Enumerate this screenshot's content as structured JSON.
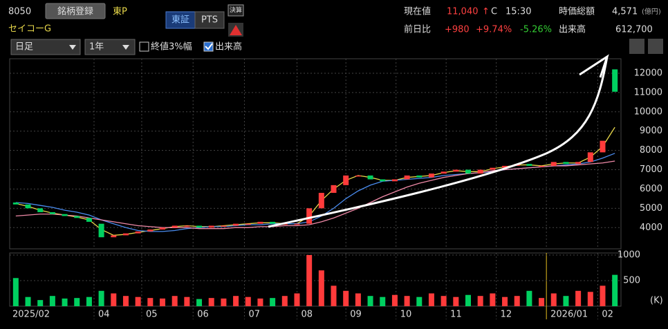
{
  "header": {
    "code": "8050",
    "register": "銘柄登録",
    "market": "東P",
    "name": "セイコーG",
    "exchange": "東証",
    "pts": "PTS",
    "settle": "決算",
    "price_label": "現在値",
    "price": "11,040",
    "arrow": "↑",
    "flag": "C",
    "time": "15:30",
    "cap_label": "時価総額",
    "cap": "4,571",
    "cap_unit": "(億円)",
    "change_label": "前日比",
    "change": "+980",
    "change_pct": "+9.74%",
    "intraday_pct": "-5.26%",
    "volume_label": "出来高",
    "volume": "612,700",
    "period": "日足",
    "range": "1年",
    "close3": "終値3%幅",
    "show_volume": "出来高"
  },
  "chart_data": [
    {
      "type": "candlestick",
      "up_color": "#ff3b3b",
      "down_color": "#00d060",
      "open": [
        5300,
        5200,
        5000,
        4800,
        4700,
        4600,
        4500,
        4200,
        3500,
        3600,
        3700,
        3800,
        3900,
        4000,
        4100,
        4100,
        4000,
        4100,
        4100,
        4200,
        4200,
        4300,
        4200,
        4200,
        4200,
        5000,
        5800,
        6200,
        6700,
        6700,
        6500,
        6400,
        6500,
        6700,
        6600,
        6800,
        6900,
        7000,
        6800,
        7000,
        7100,
        7200,
        7300,
        7200,
        7200,
        7400,
        7300,
        7400,
        7900,
        12200
      ],
      "close": [
        5200,
        5000,
        4800,
        4700,
        4600,
        4500,
        4300,
        3500,
        3600,
        3700,
        3800,
        3900,
        4000,
        4100,
        4100,
        4000,
        4100,
        4100,
        4200,
        4200,
        4300,
        4200,
        4200,
        4200,
        5000,
        5800,
        6200,
        6700,
        6700,
        6500,
        6400,
        6500,
        6700,
        6600,
        6800,
        6900,
        7000,
        6800,
        7000,
        7100,
        7200,
        7300,
        7200,
        7200,
        7400,
        7300,
        7400,
        7900,
        8500,
        11040
      ],
      "series": [
        {
          "color": "#e8d84a",
          "values": [
            5250,
            5100,
            4900,
            4750,
            4650,
            4550,
            4400,
            3900,
            3600,
            3650,
            3750,
            3850,
            3950,
            4050,
            4100,
            4050,
            4050,
            4100,
            4150,
            4200,
            4250,
            4250,
            4200,
            4200,
            4600,
            5400,
            6000,
            6450,
            6700,
            6600,
            6450,
            6450,
            6600,
            6650,
            6700,
            6850,
            6950,
            6900,
            6900,
            7050,
            7150,
            7250,
            7250,
            7200,
            7300,
            7350,
            7350,
            7650,
            8200,
            9200
          ]
        },
        {
          "color": "#4a8cf0",
          "values": [
            5300,
            5250,
            5150,
            5050,
            4900,
            4800,
            4650,
            4400,
            4200,
            4000,
            3850,
            3800,
            3800,
            3850,
            3950,
            4000,
            4050,
            4050,
            4100,
            4150,
            4150,
            4200,
            4200,
            4200,
            4300,
            4600,
            5000,
            5500,
            5900,
            6200,
            6400,
            6450,
            6500,
            6550,
            6600,
            6700,
            6750,
            6800,
            6850,
            6900,
            7000,
            7050,
            7100,
            7150,
            7200,
            7250,
            7300,
            7400,
            7600,
            7850
          ]
        },
        {
          "color": "#f08aa8",
          "values": [
            4600,
            4650,
            4700,
            4700,
            4650,
            4600,
            4500,
            4400,
            4300,
            4200,
            4100,
            4050,
            4000,
            4000,
            4000,
            3950,
            3950,
            3950,
            4000,
            4000,
            4050,
            4050,
            4100,
            4100,
            4150,
            4300,
            4500,
            4750,
            5000,
            5300,
            5600,
            5850,
            6100,
            6300,
            6450,
            6600,
            6700,
            6800,
            6850,
            6950,
            7000,
            7050,
            7100,
            7150,
            7200,
            7200,
            7250,
            7300,
            7350,
            7450
          ]
        }
      ],
      "ylim": [
        2900,
        12750
      ],
      "yticks": [
        4000,
        5000,
        6000,
        7000,
        8000,
        9000,
        10000,
        11000,
        12000
      ],
      "xlim": [
        -0.5,
        49.5
      ],
      "xticks": [
        {
          "value": 0,
          "label": "2025/02"
        },
        {
          "value": 6.4,
          "label": "04"
        },
        {
          "value": 10.3,
          "label": "05"
        },
        {
          "value": 14.5,
          "label": "06"
        },
        {
          "value": 18.7,
          "label": "07"
        },
        {
          "value": 23,
          "label": "08"
        },
        {
          "value": 27,
          "label": "09"
        },
        {
          "value": 31.1,
          "label": "10"
        },
        {
          "value": 35.2,
          "label": "11"
        },
        {
          "value": 39.3,
          "label": "12"
        },
        {
          "value": 43.4,
          "label": "2026/01"
        },
        {
          "value": 47.6,
          "label": "02"
        }
      ],
      "grid": true
    },
    {
      "type": "bar",
      "y_label": "(K)",
      "values": [
        550,
        180,
        120,
        200,
        150,
        160,
        180,
        300,
        250,
        200,
        180,
        160,
        150,
        200,
        180,
        140,
        160,
        150,
        200,
        180,
        150,
        160,
        200,
        250,
        1000,
        700,
        400,
        300,
        250,
        200,
        180,
        220,
        200,
        180,
        250,
        200,
        180,
        220,
        200,
        250,
        180,
        200,
        300,
        160,
        250,
        200,
        300,
        280,
        400,
        612.7
      ],
      "ylim": [
        0,
        1040
      ],
      "yticks": [
        500,
        1000
      ]
    }
  ]
}
